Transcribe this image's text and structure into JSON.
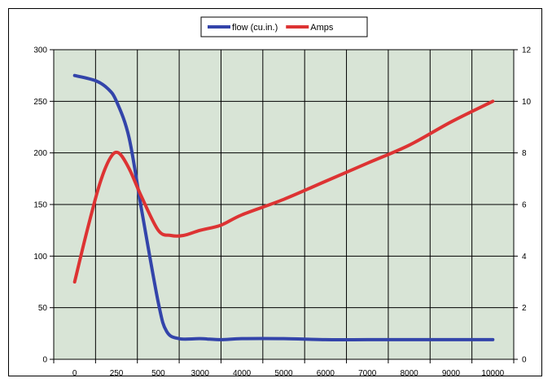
{
  "chart_data": {
    "type": "line",
    "title": "",
    "xlabel": "",
    "ylabel": "",
    "y2label": "",
    "categories": [
      "0",
      "250",
      "500",
      "3000",
      "4000",
      "5000",
      "6000",
      "7000",
      "8000",
      "9000",
      "10000"
    ],
    "category_positions": [
      0,
      1,
      2,
      3,
      4,
      5,
      6,
      7,
      8,
      9,
      10
    ],
    "x_grid_divisions": 11,
    "ylim": [
      0,
      300
    ],
    "yticks": [
      0,
      50,
      100,
      150,
      200,
      250,
      300
    ],
    "y2lim": [
      0,
      12
    ],
    "y2ticks": [
      0,
      2,
      4,
      6,
      8,
      10,
      12
    ],
    "grid": true,
    "plot_background": "#d8e4d6",
    "legend": {
      "placement": "top",
      "entries": [
        "flow (cu.in.)",
        "Amps"
      ]
    },
    "series": [
      {
        "name": "flow (cu.in.)",
        "axis": "left",
        "color": "#3344aa",
        "points": [
          [
            0,
            275
          ],
          [
            0.5,
            270
          ],
          [
            0.8,
            262
          ],
          [
            1.0,
            250
          ],
          [
            1.3,
            215
          ],
          [
            1.6,
            145
          ],
          [
            2.0,
            55
          ],
          [
            2.2,
            27
          ],
          [
            2.5,
            20
          ],
          [
            3.0,
            20
          ],
          [
            3.5,
            19
          ],
          [
            4.0,
            20
          ],
          [
            5.0,
            20
          ],
          [
            6.0,
            19
          ],
          [
            7.0,
            19
          ],
          [
            8.0,
            19
          ],
          [
            9.0,
            19
          ],
          [
            10.0,
            19
          ]
        ]
      },
      {
        "name": "Amps",
        "axis": "right",
        "color": "#dd3333",
        "points": [
          [
            0,
            3.0
          ],
          [
            0.3,
            5.0
          ],
          [
            0.6,
            6.8
          ],
          [
            0.85,
            7.8
          ],
          [
            1.05,
            8.0
          ],
          [
            1.3,
            7.4
          ],
          [
            1.6,
            6.3
          ],
          [
            2.0,
            5.0
          ],
          [
            2.3,
            4.8
          ],
          [
            2.6,
            4.8
          ],
          [
            3.0,
            5.0
          ],
          [
            3.5,
            5.2
          ],
          [
            4.0,
            5.6
          ],
          [
            5.0,
            6.2
          ],
          [
            6.0,
            6.9
          ],
          [
            7.0,
            7.6
          ],
          [
            8.0,
            8.3
          ],
          [
            9.0,
            9.2
          ],
          [
            10.0,
            10.0
          ]
        ]
      }
    ]
  }
}
